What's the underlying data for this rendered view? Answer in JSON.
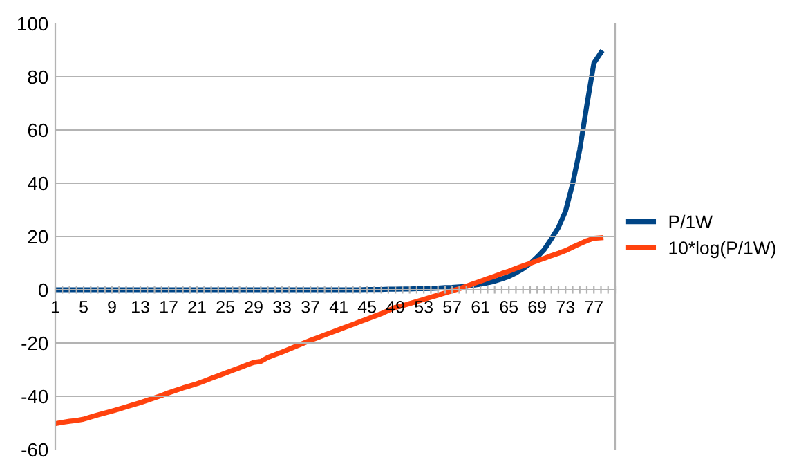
{
  "chart_data": {
    "type": "line",
    "categories": [
      "1",
      null,
      null,
      null,
      "5",
      null,
      null,
      null,
      "9",
      null,
      null,
      null,
      "13",
      null,
      null,
      null,
      "17",
      null,
      null,
      null,
      "21",
      null,
      null,
      null,
      "25",
      null,
      null,
      null,
      "29",
      null,
      null,
      null,
      "33",
      null,
      null,
      null,
      "37",
      null,
      null,
      null,
      "41",
      null,
      null,
      null,
      "45",
      null,
      null,
      null,
      "49",
      null,
      null,
      null,
      "53",
      null,
      null,
      null,
      "57",
      null,
      null,
      null,
      "61",
      null,
      null,
      null,
      "65",
      null,
      null,
      null,
      "69",
      null,
      null,
      null,
      "73",
      null,
      null,
      null,
      "77",
      null,
      null,
      null
    ],
    "series": [
      {
        "name": "P/1W",
        "color": "#004586",
        "values": [
          0,
          0,
          0,
          0,
          0,
          0,
          0,
          0,
          0,
          0,
          0,
          0,
          0,
          0,
          0,
          0,
          0,
          0,
          0,
          0,
          0,
          0,
          0,
          0,
          0,
          0,
          0,
          0,
          0,
          0,
          0,
          0,
          0,
          0,
          0,
          0,
          0,
          0,
          0,
          0,
          0,
          0,
          0,
          0,
          0.1,
          0.1,
          0.1,
          0.2,
          0.2,
          0.3,
          0.3,
          0.4,
          0.4,
          0.5,
          0.6,
          0.8,
          0.9,
          1.1,
          1.3,
          1.7,
          2.1,
          2.6,
          3.2,
          4.1,
          5.0,
          6.3,
          7.9,
          9.8,
          12.3,
          15.1,
          19.1,
          23.4,
          29.5,
          39.8,
          52.5,
          69.2,
          85.1,
          89.1,
          null,
          null
        ]
      },
      {
        "name": "10*log(P/1W)",
        "color": "#ff420e",
        "values": [
          -50.3,
          -49.8,
          -49.4,
          -49.1,
          -48.6,
          -47.8,
          -47.0,
          -46.3,
          -45.6,
          -44.8,
          -44.0,
          -43.2,
          -42.4,
          -41.5,
          -40.6,
          -39.7,
          -38.7,
          -37.8,
          -36.9,
          -36.1,
          -35.3,
          -34.3,
          -33.3,
          -32.3,
          -31.3,
          -30.3,
          -29.3,
          -28.3,
          -27.3,
          -26.9,
          -25.4,
          -24.4,
          -23.4,
          -22.3,
          -21.2,
          -20.1,
          -19.0,
          -18.0,
          -17.0,
          -16.0,
          -15.0,
          -14.0,
          -13.0,
          -12.0,
          -11.0,
          -10.0,
          -9.0,
          -7.8,
          -6.6,
          -6.0,
          -5.2,
          -4.4,
          -3.6,
          -2.8,
          -2.0,
          -1.2,
          -0.4,
          0.4,
          1.3,
          2.3,
          3.2,
          4.2,
          5.1,
          6.1,
          7.0,
          8.0,
          9.0,
          9.9,
          10.9,
          11.8,
          12.8,
          13.7,
          14.7,
          16.0,
          17.2,
          18.4,
          19.3,
          19.5,
          null,
          null
        ]
      }
    ],
    "ylim": [
      -60,
      100
    ],
    "yticks": [
      -60,
      -40,
      -20,
      0,
      20,
      40,
      60,
      80,
      100
    ],
    "grid": "y",
    "legend": "right",
    "marker": "none",
    "line_style": "solid"
  }
}
